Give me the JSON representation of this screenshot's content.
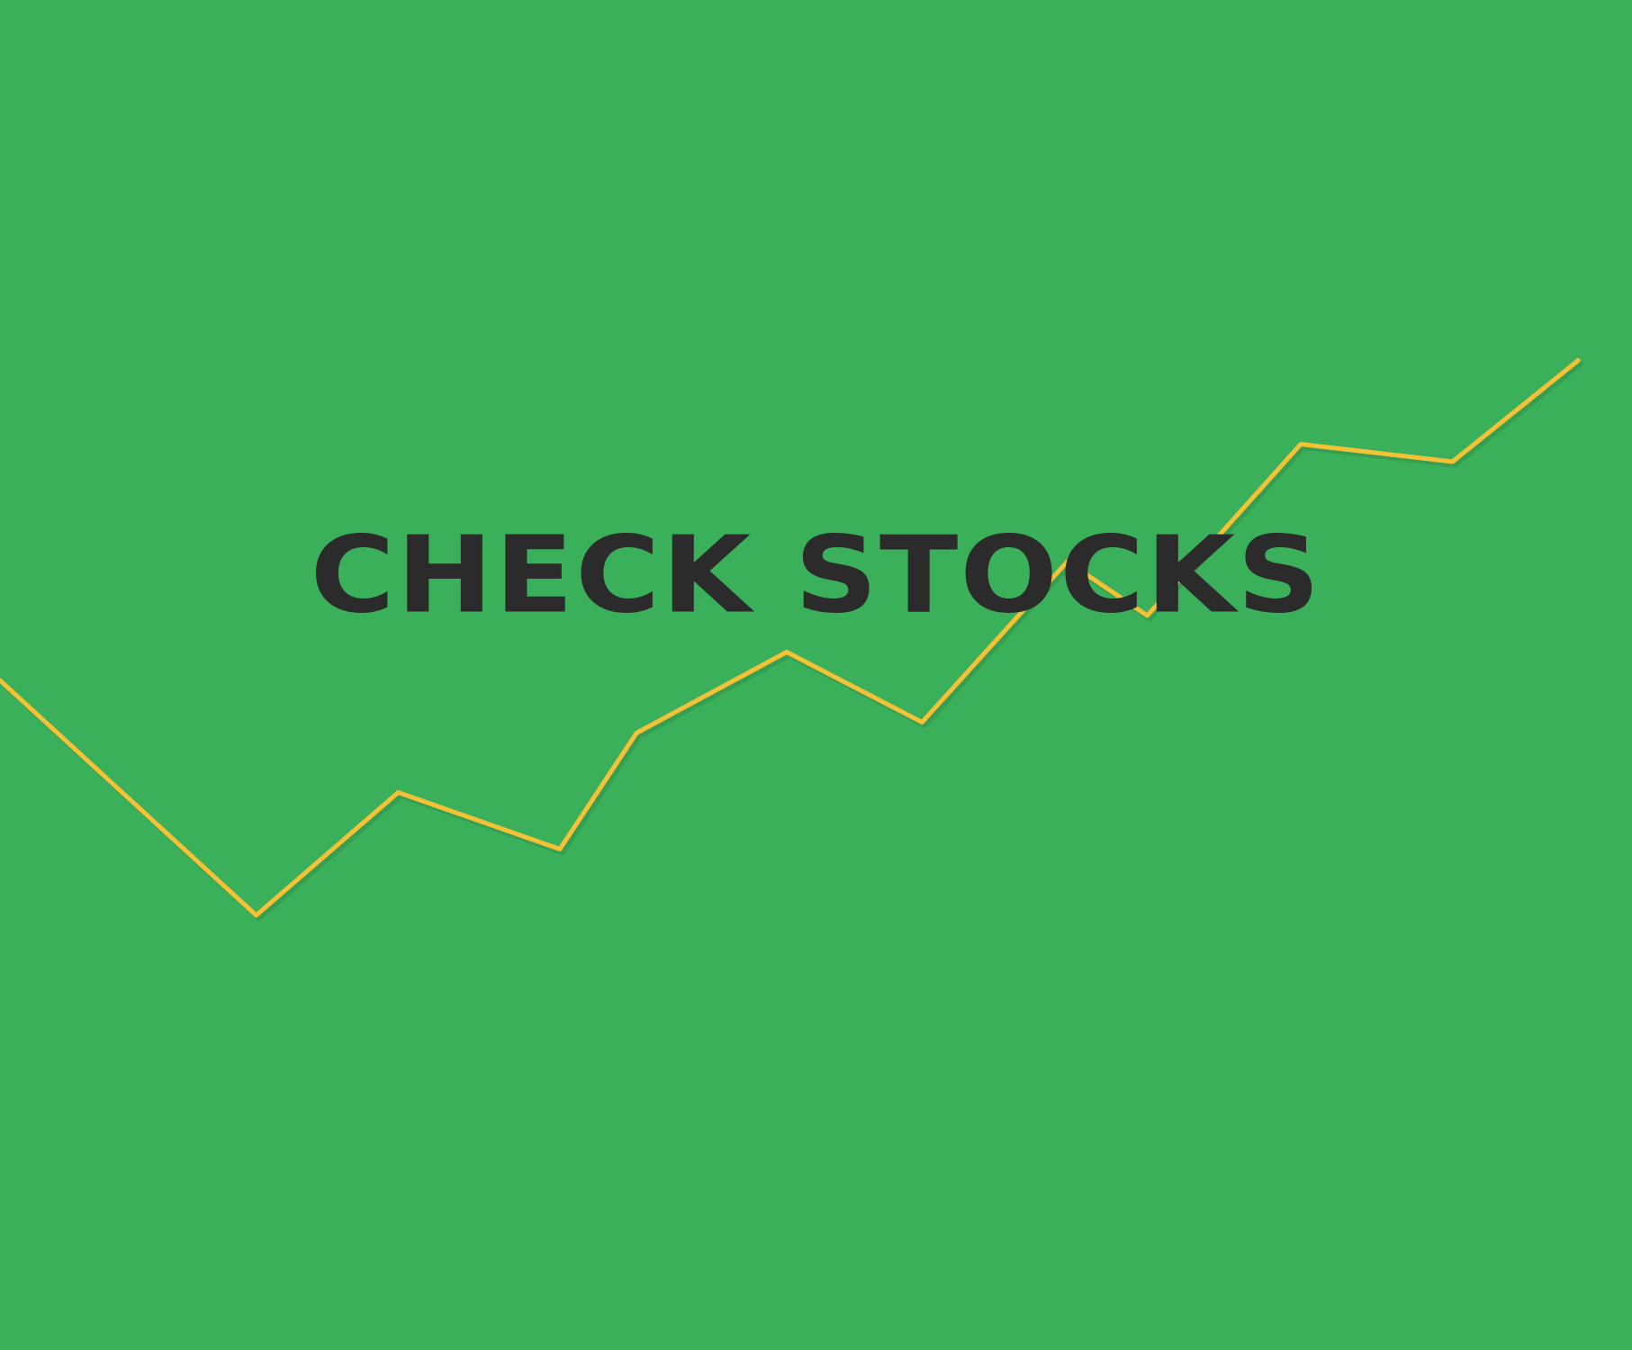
{
  "title": "CHECK STOCKS",
  "colors": {
    "background": "#3bb05a",
    "line": "#f6c136",
    "title": "#2b2b2b",
    "shadow": "#2a7e3f"
  },
  "trend_line": {
    "points": [
      {
        "x": 0.0,
        "y": 0.504
      },
      {
        "x": 0.157,
        "y": 0.678
      },
      {
        "x": 0.244,
        "y": 0.587
      },
      {
        "x": 0.343,
        "y": 0.629
      },
      {
        "x": 0.39,
        "y": 0.543
      },
      {
        "x": 0.482,
        "y": 0.483
      },
      {
        "x": 0.565,
        "y": 0.535
      },
      {
        "x": 0.654,
        "y": 0.416
      },
      {
        "x": 0.703,
        "y": 0.456
      },
      {
        "x": 0.797,
        "y": 0.329
      },
      {
        "x": 0.89,
        "y": 0.342
      },
      {
        "x": 0.967,
        "y": 0.267
      }
    ]
  }
}
